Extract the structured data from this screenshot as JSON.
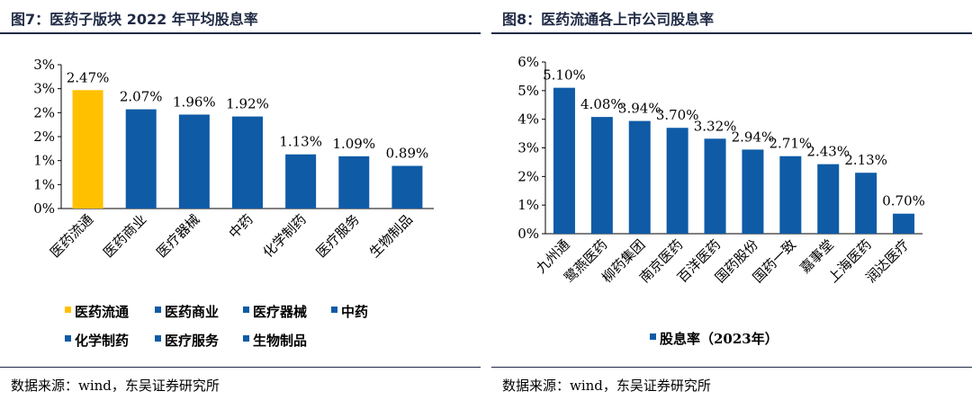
{
  "panels": [
    {
      "title": "图7：医药子版块 2022 年平均股息率",
      "source": "数据来源：wind，东吴证券研究所"
    },
    {
      "title": "图8：医药流通各上市公司股息率",
      "source": "数据来源：wind，东吴证券研究所"
    }
  ],
  "chart_data": [
    {
      "type": "bar",
      "categories": [
        "医药流通",
        "医药商业",
        "医疗器械",
        "中药",
        "化学制药",
        "医疗服务",
        "生物制品"
      ],
      "values": [
        2.47,
        2.07,
        1.96,
        1.92,
        1.13,
        1.09,
        0.89
      ],
      "data_labels": [
        "2.47%",
        "2.07%",
        "1.96%",
        "1.92%",
        "1.13%",
        "1.09%",
        "0.89%"
      ],
      "colors": [
        "#FFC000",
        "#0F5BA6",
        "#0F5BA6",
        "#0F5BA6",
        "#0F5BA6",
        "#0F5BA6",
        "#0F5BA6"
      ],
      "y_ticks": [
        "0%",
        "1%",
        "1%",
        "2%",
        "2%",
        "3%",
        "3%"
      ],
      "ylim": [
        0,
        3
      ],
      "legend": [
        "医药流通",
        "医药商业",
        "医疗器械",
        "中药",
        "化学制药",
        "医疗服务",
        "生物制品"
      ],
      "legend_placement": "bottom",
      "grid": false
    },
    {
      "type": "bar",
      "categories": [
        "九州通",
        "鹭燕医药",
        "柳药集团",
        "南京医药",
        "百洋医药",
        "国药股份",
        "国药一致",
        "嘉事堂",
        "上海医药",
        "润达医疗"
      ],
      "values": [
        5.1,
        4.08,
        3.94,
        3.7,
        3.32,
        2.94,
        2.71,
        2.43,
        2.13,
        0.7
      ],
      "data_labels": [
        "5.10%",
        "4.08%",
        "3.94%",
        "3.70%",
        "3.32%",
        "2.94%",
        "2.71%",
        "2.43%",
        "2.13%",
        "0.70%"
      ],
      "colors": [
        "#0F5BA6"
      ],
      "y_ticks": [
        "0%",
        "1%",
        "2%",
        "3%",
        "4%",
        "5%",
        "6%"
      ],
      "ylim": [
        0,
        6
      ],
      "legend": [
        "股息率（2023年）"
      ],
      "legend_placement": "bottom",
      "grid": false
    }
  ]
}
